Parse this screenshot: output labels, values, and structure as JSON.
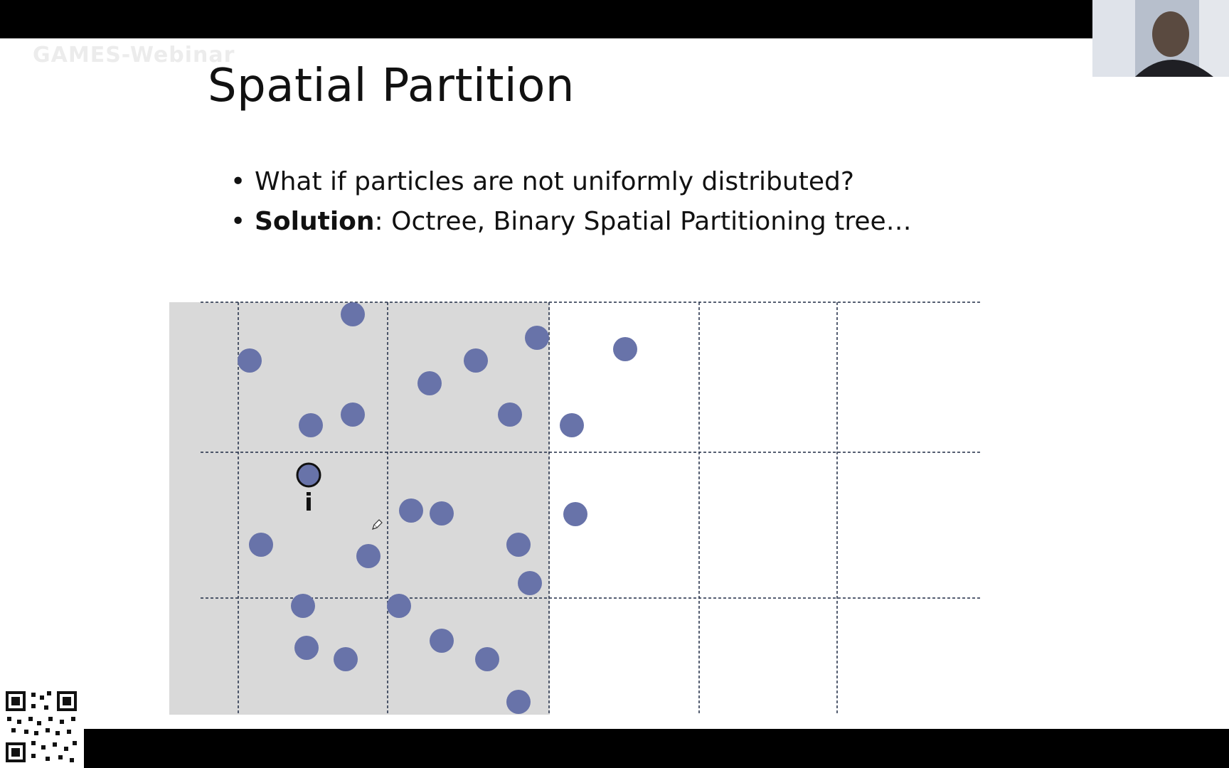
{
  "watermark": "GAMES-Webinar",
  "slide": {
    "title": "Spatial Partition",
    "bullets": [
      {
        "text": "What if particles are not uniformly distributed?"
      },
      {
        "bold": "Solution",
        "text": ": Octree, Binary Spatial Partitioning tree…"
      }
    ]
  },
  "particle_label": "i",
  "colors": {
    "particle": "#6873a9",
    "shaded_region": "#d9d9d9",
    "grid_line": "#1f2a44"
  }
}
